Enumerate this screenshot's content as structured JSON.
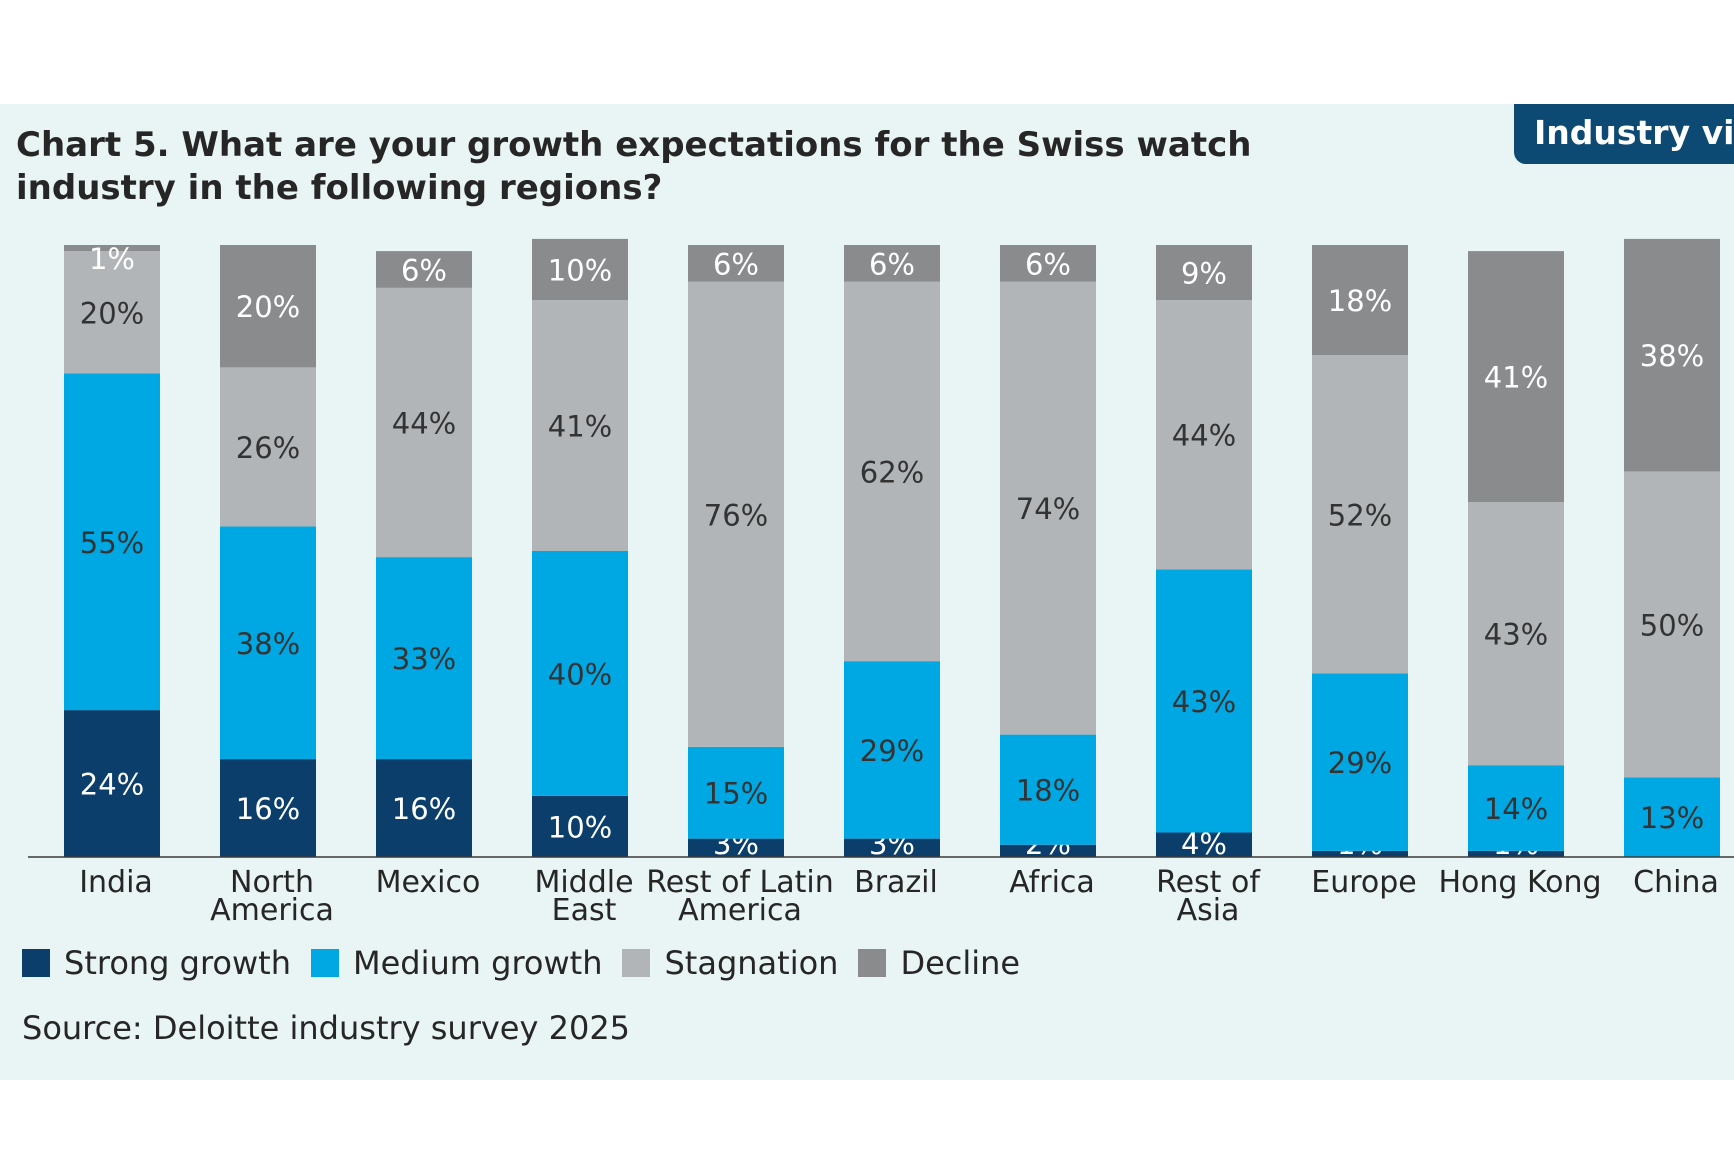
{
  "title": "Chart 5. What are your growth expectations for the Swiss watch industry in the following regions?",
  "badge": "Industry vie",
  "source": "Source: Deloitte industry survey 2025",
  "colors": {
    "strong": "#0b3e6b",
    "medium": "#00a8e3",
    "stagnation": "#b1b5b8",
    "decline": "#8a8b8d",
    "panel": "#e9f4f4"
  },
  "legend": [
    {
      "key": "strong",
      "label": "Strong growth"
    },
    {
      "key": "medium",
      "label": "Medium growth"
    },
    {
      "key": "stagnation",
      "label": "Stagnation"
    },
    {
      "key": "decline",
      "label": "Decline"
    }
  ],
  "chart_data": {
    "type": "bar",
    "stacked": true,
    "categories": [
      [
        "India"
      ],
      [
        "North",
        "America"
      ],
      [
        "Mexico"
      ],
      [
        "Middle",
        "East"
      ],
      [
        "Rest of Latin",
        "America"
      ],
      [
        "Brazil"
      ],
      [
        "Africa"
      ],
      [
        "Rest of",
        "Asia"
      ],
      [
        "Europe"
      ],
      [
        "Hong Kong"
      ],
      [
        "China"
      ]
    ],
    "series": [
      {
        "key": "strong",
        "name": "Strong growth",
        "values": [
          24,
          16,
          16,
          10,
          3,
          3,
          2,
          4,
          1,
          1,
          0
        ]
      },
      {
        "key": "medium",
        "name": "Medium growth",
        "values": [
          55,
          38,
          33,
          40,
          15,
          29,
          18,
          43,
          29,
          14,
          13
        ]
      },
      {
        "key": "stagnation",
        "name": "Stagnation",
        "values": [
          20,
          26,
          44,
          41,
          76,
          62,
          74,
          44,
          52,
          43,
          50
        ]
      },
      {
        "key": "decline",
        "name": "Decline",
        "values": [
          1,
          20,
          6,
          10,
          6,
          6,
          6,
          9,
          18,
          41,
          38
        ]
      }
    ],
    "ylim": [
      0,
      100
    ],
    "legend_position": "bottom-left"
  }
}
